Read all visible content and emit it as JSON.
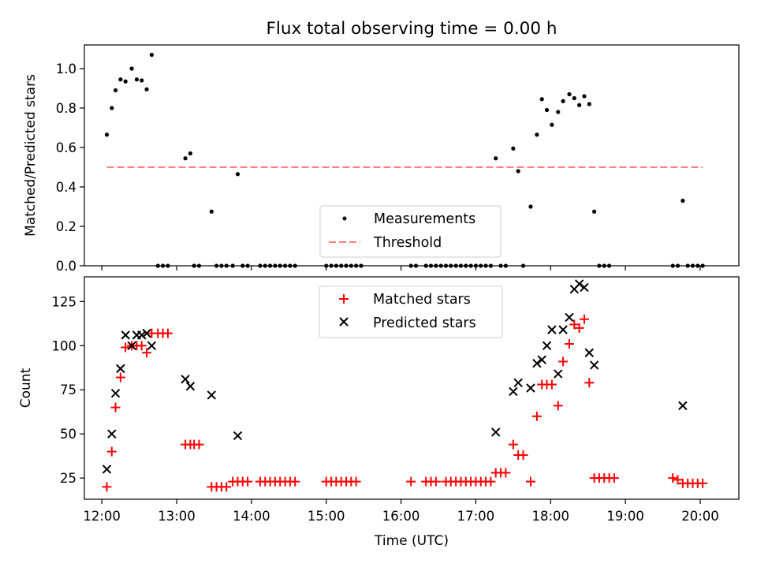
{
  "figure_title": "Flux total observing time = 0.00 h",
  "chart_data": [
    {
      "type": "scatter",
      "panel": "top",
      "ylabel": "Matched/Predicted stars",
      "xlim": [
        "11:46",
        "20:31"
      ],
      "ylim": [
        0,
        1.12
      ],
      "yticks": [
        0.0,
        0.2,
        0.4,
        0.6,
        0.8,
        1.0
      ],
      "ytick_labels": [
        "0.0",
        "0.2",
        "0.4",
        "0.6",
        "0.8",
        "1.0"
      ],
      "xticks": [
        "12:00",
        "13:00",
        "14:00",
        "15:00",
        "16:00",
        "17:00",
        "18:00",
        "19:00",
        "20:00"
      ],
      "legend_placement": "lower-center",
      "grid": false,
      "series": [
        {
          "name": "Measurements",
          "marker": "dot",
          "color": "#000000",
          "points": [
            [
              "12:04",
              0.665
            ],
            [
              "12:08",
              0.8
            ],
            [
              "12:11",
              0.89
            ],
            [
              "12:15",
              0.945
            ],
            [
              "12:19",
              0.935
            ],
            [
              "12:24",
              1.0
            ],
            [
              "12:28",
              0.945
            ],
            [
              "12:32",
              0.94
            ],
            [
              "12:36",
              0.895
            ],
            [
              "12:40",
              1.07
            ],
            [
              "12:45",
              0.0
            ],
            [
              "12:49",
              0.0
            ],
            [
              "12:53",
              0.0
            ],
            [
              "13:07",
              0.545
            ],
            [
              "13:11",
              0.57
            ],
            [
              "13:14",
              0.0
            ],
            [
              "13:18",
              0.0
            ],
            [
              "13:28",
              0.275
            ],
            [
              "13:32",
              0.0
            ],
            [
              "13:36",
              0.0
            ],
            [
              "13:40",
              0.0
            ],
            [
              "13:45",
              0.0
            ],
            [
              "13:49",
              0.465
            ],
            [
              "13:53",
              0.0
            ],
            [
              "13:57",
              0.0
            ],
            [
              "14:07",
              0.0
            ],
            [
              "14:11",
              0.0
            ],
            [
              "14:15",
              0.0
            ],
            [
              "14:19",
              0.0
            ],
            [
              "14:23",
              0.0
            ],
            [
              "14:27",
              0.0
            ],
            [
              "14:31",
              0.0
            ],
            [
              "14:35",
              0.0
            ],
            [
              "15:00",
              0.0
            ],
            [
              "15:04",
              0.0
            ],
            [
              "15:08",
              0.0
            ],
            [
              "15:12",
              0.0
            ],
            [
              "15:16",
              0.0
            ],
            [
              "15:20",
              0.0
            ],
            [
              "15:24",
              0.0
            ],
            [
              "15:28",
              0.0
            ],
            [
              "16:08",
              0.0
            ],
            [
              "16:12",
              0.0
            ],
            [
              "16:20",
              0.0
            ],
            [
              "16:24",
              0.0
            ],
            [
              "16:28",
              0.0
            ],
            [
              "16:32",
              0.0
            ],
            [
              "16:36",
              0.0
            ],
            [
              "16:40",
              0.0
            ],
            [
              "16:44",
              0.0
            ],
            [
              "16:48",
              0.0
            ],
            [
              "16:52",
              0.0
            ],
            [
              "16:56",
              0.0
            ],
            [
              "17:00",
              0.0
            ],
            [
              "17:04",
              0.0
            ],
            [
              "17:08",
              0.0
            ],
            [
              "17:12",
              0.0
            ],
            [
              "17:16",
              0.545
            ],
            [
              "17:20",
              0.0
            ],
            [
              "17:24",
              0.0
            ],
            [
              "17:30",
              0.595
            ],
            [
              "17:34",
              0.48
            ],
            [
              "17:38",
              0.0
            ],
            [
              "17:44",
              0.3
            ],
            [
              "17:49",
              0.665
            ],
            [
              "17:53",
              0.845
            ],
            [
              "17:57",
              0.79
            ],
            [
              "18:01",
              0.715
            ],
            [
              "18:06",
              0.78
            ],
            [
              "18:10",
              0.835
            ],
            [
              "18:15",
              0.87
            ],
            [
              "18:19",
              0.85
            ],
            [
              "18:23",
              0.815
            ],
            [
              "18:27",
              0.86
            ],
            [
              "18:31",
              0.82
            ],
            [
              "18:35",
              0.275
            ],
            [
              "18:39",
              0.0
            ],
            [
              "18:43",
              0.0
            ],
            [
              "18:47",
              0.0
            ],
            [
              "19:38",
              0.0
            ],
            [
              "19:42",
              0.0
            ],
            [
              "19:46",
              0.33
            ],
            [
              "19:50",
              0.0
            ],
            [
              "19:54",
              0.0
            ],
            [
              "19:58",
              0.0
            ],
            [
              "20:02",
              0.0
            ]
          ]
        },
        {
          "name": "Threshold",
          "marker": "dashed-line",
          "color": "#ff8080",
          "points": [
            [
              "12:04",
              0.5
            ],
            [
              "20:02",
              0.5
            ]
          ]
        }
      ]
    },
    {
      "type": "scatter",
      "panel": "bottom",
      "xlabel": "Time (UTC)",
      "ylabel": "Count",
      "xlim": [
        "11:46",
        "20:31"
      ],
      "ylim": [
        13,
        139
      ],
      "yticks": [
        25,
        50,
        75,
        100,
        125
      ],
      "ytick_labels": [
        "25",
        "50",
        "75",
        "100",
        "125"
      ],
      "xticks": [
        "12:00",
        "13:00",
        "14:00",
        "15:00",
        "16:00",
        "17:00",
        "18:00",
        "19:00",
        "20:00"
      ],
      "xtick_labels": [
        "12:00",
        "13:00",
        "14:00",
        "15:00",
        "16:00",
        "17:00",
        "18:00",
        "19:00",
        "20:00"
      ],
      "legend_placement": "upper-center",
      "grid": false,
      "series": [
        {
          "name": "Matched stars",
          "marker": "plus",
          "color": "#ff0000",
          "points": [
            [
              "12:04",
              20
            ],
            [
              "12:08",
              40
            ],
            [
              "12:11",
              65
            ],
            [
              "12:15",
              82
            ],
            [
              "12:19",
              99
            ],
            [
              "12:24",
              100
            ],
            [
              "12:28",
              100
            ],
            [
              "12:32",
              100
            ],
            [
              "12:36",
              96
            ],
            [
              "12:40",
              107
            ],
            [
              "12:45",
              107
            ],
            [
              "12:49",
              107
            ],
            [
              "12:53",
              107
            ],
            [
              "13:07",
              44
            ],
            [
              "13:11",
              44
            ],
            [
              "13:14",
              44
            ],
            [
              "13:18",
              44
            ],
            [
              "13:28",
              20
            ],
            [
              "13:32",
              20
            ],
            [
              "13:36",
              20
            ],
            [
              "13:40",
              20
            ],
            [
              "13:45",
              23
            ],
            [
              "13:49",
              23
            ],
            [
              "13:53",
              23
            ],
            [
              "13:57",
              23
            ],
            [
              "14:07",
              23
            ],
            [
              "14:11",
              23
            ],
            [
              "14:15",
              23
            ],
            [
              "14:19",
              23
            ],
            [
              "14:23",
              23
            ],
            [
              "14:27",
              23
            ],
            [
              "14:31",
              23
            ],
            [
              "14:35",
              23
            ],
            [
              "15:00",
              23
            ],
            [
              "15:04",
              23
            ],
            [
              "15:08",
              23
            ],
            [
              "15:12",
              23
            ],
            [
              "15:16",
              23
            ],
            [
              "15:20",
              23
            ],
            [
              "15:24",
              23
            ],
            [
              "16:08",
              23
            ],
            [
              "16:20",
              23
            ],
            [
              "16:24",
              23
            ],
            [
              "16:28",
              23
            ],
            [
              "16:36",
              23
            ],
            [
              "16:40",
              23
            ],
            [
              "16:44",
              23
            ],
            [
              "16:48",
              23
            ],
            [
              "16:52",
              23
            ],
            [
              "16:56",
              23
            ],
            [
              "17:00",
              23
            ],
            [
              "17:04",
              23
            ],
            [
              "17:08",
              23
            ],
            [
              "17:12",
              23
            ],
            [
              "17:16",
              28
            ],
            [
              "17:20",
              28
            ],
            [
              "17:24",
              28
            ],
            [
              "17:30",
              44
            ],
            [
              "17:34",
              38
            ],
            [
              "17:38",
              38
            ],
            [
              "17:44",
              23
            ],
            [
              "17:49",
              60
            ],
            [
              "17:53",
              78
            ],
            [
              "17:57",
              78
            ],
            [
              "18:01",
              78
            ],
            [
              "18:06",
              66
            ],
            [
              "18:10",
              91
            ],
            [
              "18:15",
              101
            ],
            [
              "18:19",
              112
            ],
            [
              "18:23",
              110
            ],
            [
              "18:27",
              115
            ],
            [
              "18:31",
              79
            ],
            [
              "18:35",
              25
            ],
            [
              "18:39",
              25
            ],
            [
              "18:43",
              25
            ],
            [
              "18:47",
              25
            ],
            [
              "18:51",
              25
            ],
            [
              "19:38",
              25
            ],
            [
              "19:42",
              24
            ],
            [
              "19:46",
              22
            ],
            [
              "19:50",
              22
            ],
            [
              "19:54",
              22
            ],
            [
              "19:58",
              22
            ],
            [
              "20:02",
              22
            ]
          ]
        },
        {
          "name": "Predicted stars",
          "marker": "x",
          "color": "#000000",
          "points": [
            [
              "12:04",
              30
            ],
            [
              "12:08",
              50
            ],
            [
              "12:11",
              73
            ],
            [
              "12:15",
              87
            ],
            [
              "12:19",
              106
            ],
            [
              "12:24",
              100
            ],
            [
              "12:28",
              106
            ],
            [
              "12:32",
              106
            ],
            [
              "12:36",
              107
            ],
            [
              "12:40",
              100
            ],
            [
              "13:07",
              81
            ],
            [
              "13:11",
              77
            ],
            [
              "13:28",
              72
            ],
            [
              "13:49",
              49
            ],
            [
              "17:16",
              51
            ],
            [
              "17:30",
              74
            ],
            [
              "17:34",
              79
            ],
            [
              "17:44",
              76
            ],
            [
              "17:49",
              90
            ],
            [
              "17:53",
              92
            ],
            [
              "17:57",
              100
            ],
            [
              "18:01",
              109
            ],
            [
              "18:06",
              84
            ],
            [
              "18:10",
              109
            ],
            [
              "18:15",
              116
            ],
            [
              "18:19",
              132
            ],
            [
              "18:23",
              135
            ],
            [
              "18:27",
              133
            ],
            [
              "18:31",
              96
            ],
            [
              "18:35",
              89
            ],
            [
              "19:46",
              66
            ]
          ]
        }
      ]
    }
  ]
}
